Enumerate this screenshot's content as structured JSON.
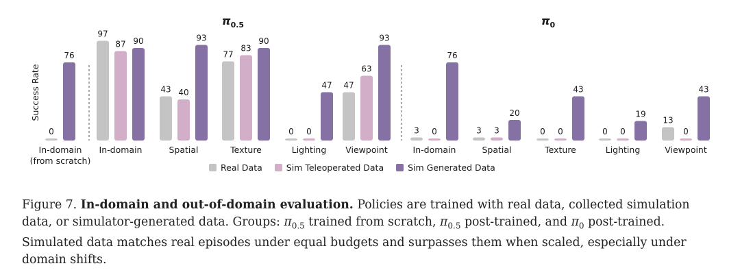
{
  "chart_data": {
    "type": "bar",
    "ylabel": "Success Rate",
    "ylim": [
      0,
      100
    ],
    "grid": false,
    "legend_position": "bottom-center",
    "series_names": [
      "Real Data",
      "Sim Teleoperated Data",
      "Sim Generated Data"
    ],
    "series_colors": [
      "#c4c4c4",
      "#d2aec9",
      "#8671a5"
    ],
    "panels": [
      {
        "title_symbol": "π",
        "title_subscript": "0.5",
        "groups": [
          {
            "label": "In-domain",
            "label_line2": "(from scratch)",
            "bars": [
              {
                "series": 0,
                "value": 0
              },
              {
                "series": 2,
                "value": 76
              }
            ]
          },
          {
            "label": "In-domain",
            "label_line2": "",
            "bars": [
              {
                "series": 0,
                "value": 97
              },
              {
                "series": 1,
                "value": 87
              },
              {
                "series": 2,
                "value": 90
              }
            ]
          },
          {
            "label": "Spatial",
            "label_line2": "",
            "bars": [
              {
                "series": 0,
                "value": 43
              },
              {
                "series": 1,
                "value": 40
              },
              {
                "series": 2,
                "value": 93
              }
            ]
          },
          {
            "label": "Texture",
            "label_line2": "",
            "bars": [
              {
                "series": 0,
                "value": 77
              },
              {
                "series": 1,
                "value": 83
              },
              {
                "series": 2,
                "value": 90
              }
            ]
          },
          {
            "label": "Lighting",
            "label_line2": "",
            "bars": [
              {
                "series": 0,
                "value": 0
              },
              {
                "series": 1,
                "value": 0
              },
              {
                "series": 2,
                "value": 47
              }
            ]
          },
          {
            "label": "Viewpoint",
            "label_line2": "",
            "bars": [
              {
                "series": 0,
                "value": 47
              },
              {
                "series": 1,
                "value": 63
              },
              {
                "series": 2,
                "value": 93
              }
            ]
          }
        ]
      },
      {
        "title_symbol": "π",
        "title_subscript": "0",
        "groups": [
          {
            "label": "In-domain",
            "label_line2": "",
            "bars": [
              {
                "series": 0,
                "value": 3
              },
              {
                "series": 1,
                "value": 0
              },
              {
                "series": 2,
                "value": 76
              }
            ]
          },
          {
            "label": "Spatial",
            "label_line2": "",
            "bars": [
              {
                "series": 0,
                "value": 3
              },
              {
                "series": 1,
                "value": 3
              },
              {
                "series": 2,
                "value": 20
              }
            ]
          },
          {
            "label": "Texture",
            "label_line2": "",
            "bars": [
              {
                "series": 0,
                "value": 0
              },
              {
                "series": 1,
                "value": 0
              },
              {
                "series": 2,
                "value": 43
              }
            ]
          },
          {
            "label": "Lighting",
            "label_line2": "",
            "bars": [
              {
                "series": 0,
                "value": 0
              },
              {
                "series": 1,
                "value": 0
              },
              {
                "series": 2,
                "value": 19
              }
            ]
          },
          {
            "label": "Viewpoint",
            "label_line2": "",
            "bars": [
              {
                "series": 0,
                "value": 13
              },
              {
                "series": 1,
                "value": 0
              },
              {
                "series": 2,
                "value": 43
              }
            ]
          }
        ]
      }
    ]
  },
  "legend": {
    "real": "Real Data",
    "sim_teleop": "Sim Teleoperated Data",
    "sim_gen": "Sim Generated Data"
  },
  "caption": {
    "prefix": "Figure 7.",
    "bold": "In-domain and out-of-domain evaluation.",
    "text1": "Policies are trained with real data, collected simulation data, or simulator-generated data. Groups:",
    "pi": "π",
    "sub_05": "0.5",
    "text2": "trained from scratch,",
    "text3": "post-trained, and",
    "sub_0": "0",
    "text4": "post-trained. Simulated data matches real episodes under equal budgets and surpasses them when scaled, especially under domain shifts."
  }
}
